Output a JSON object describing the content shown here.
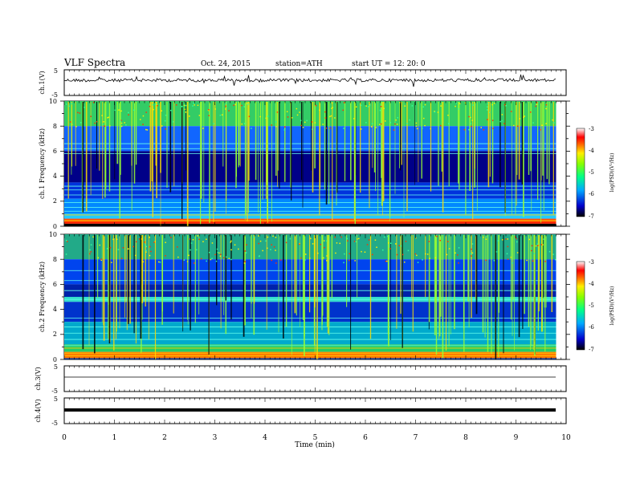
{
  "header": {
    "title": "VLF Spectra",
    "date": "Oct. 24, 2015",
    "station": "station=ATH",
    "start": "start  UT =   12: 20: 0"
  },
  "chart_data": [
    {
      "type": "line",
      "name": "ch1-voltage",
      "ylabel": "ch.1(V)",
      "ylim": [
        -5,
        5
      ],
      "yticks": [
        "5",
        "-5"
      ],
      "x": [
        0,
        1,
        2,
        3,
        4,
        5,
        6,
        7,
        8,
        9,
        9.8
      ],
      "values": [
        0,
        0.1,
        -0.1,
        0.05,
        -0.05,
        0.1,
        0,
        -0.1,
        0.05,
        0,
        0.1
      ]
    },
    {
      "type": "heatmap",
      "name": "ch1-spectrogram",
      "ylabel": "ch.1 Frequency (kHz)",
      "ylim": [
        0,
        10
      ],
      "yticks": [
        "0",
        "2",
        "4",
        "6",
        "8",
        "10"
      ],
      "xlim": [
        0,
        9.8
      ],
      "colorbar": {
        "label": "log(PSD)(V²/Hz)",
        "ticks": [
          "-3",
          "-4",
          "-5",
          "-6",
          "-7"
        ],
        "range": [
          -7,
          -3
        ]
      }
    },
    {
      "type": "heatmap",
      "name": "ch2-spectrogram",
      "ylabel": "ch.2 Frequency (kHz)",
      "ylim": [
        0,
        10
      ],
      "yticks": [
        "0",
        "2",
        "4",
        "6",
        "8",
        "10"
      ],
      "xlim": [
        0,
        9.8
      ],
      "colorbar": {
        "label": "log(PSD)(V²/Hz)",
        "ticks": [
          "-3",
          "-4",
          "-5",
          "-6",
          "-7"
        ],
        "range": [
          -7,
          -3
        ]
      }
    },
    {
      "type": "line",
      "name": "ch3-voltage",
      "ylabel": "ch.3(V)",
      "ylim": [
        -5,
        5
      ],
      "yticks": [
        "5",
        "-5"
      ],
      "x": [
        0,
        9.8
      ],
      "values": [
        0,
        0
      ]
    },
    {
      "type": "line",
      "name": "ch4-voltage",
      "ylabel": "ch.4(V)",
      "ylim": [
        -5,
        5
      ],
      "yticks": [
        "5",
        "-5"
      ],
      "x": [
        0,
        9.8
      ],
      "values": [
        0,
        0
      ]
    }
  ],
  "xaxis": {
    "label": "Time  (min)",
    "xlim": [
      0,
      10
    ],
    "ticks": [
      "0",
      "1",
      "2",
      "3",
      "4",
      "5",
      "6",
      "7",
      "8",
      "9",
      "10"
    ]
  }
}
